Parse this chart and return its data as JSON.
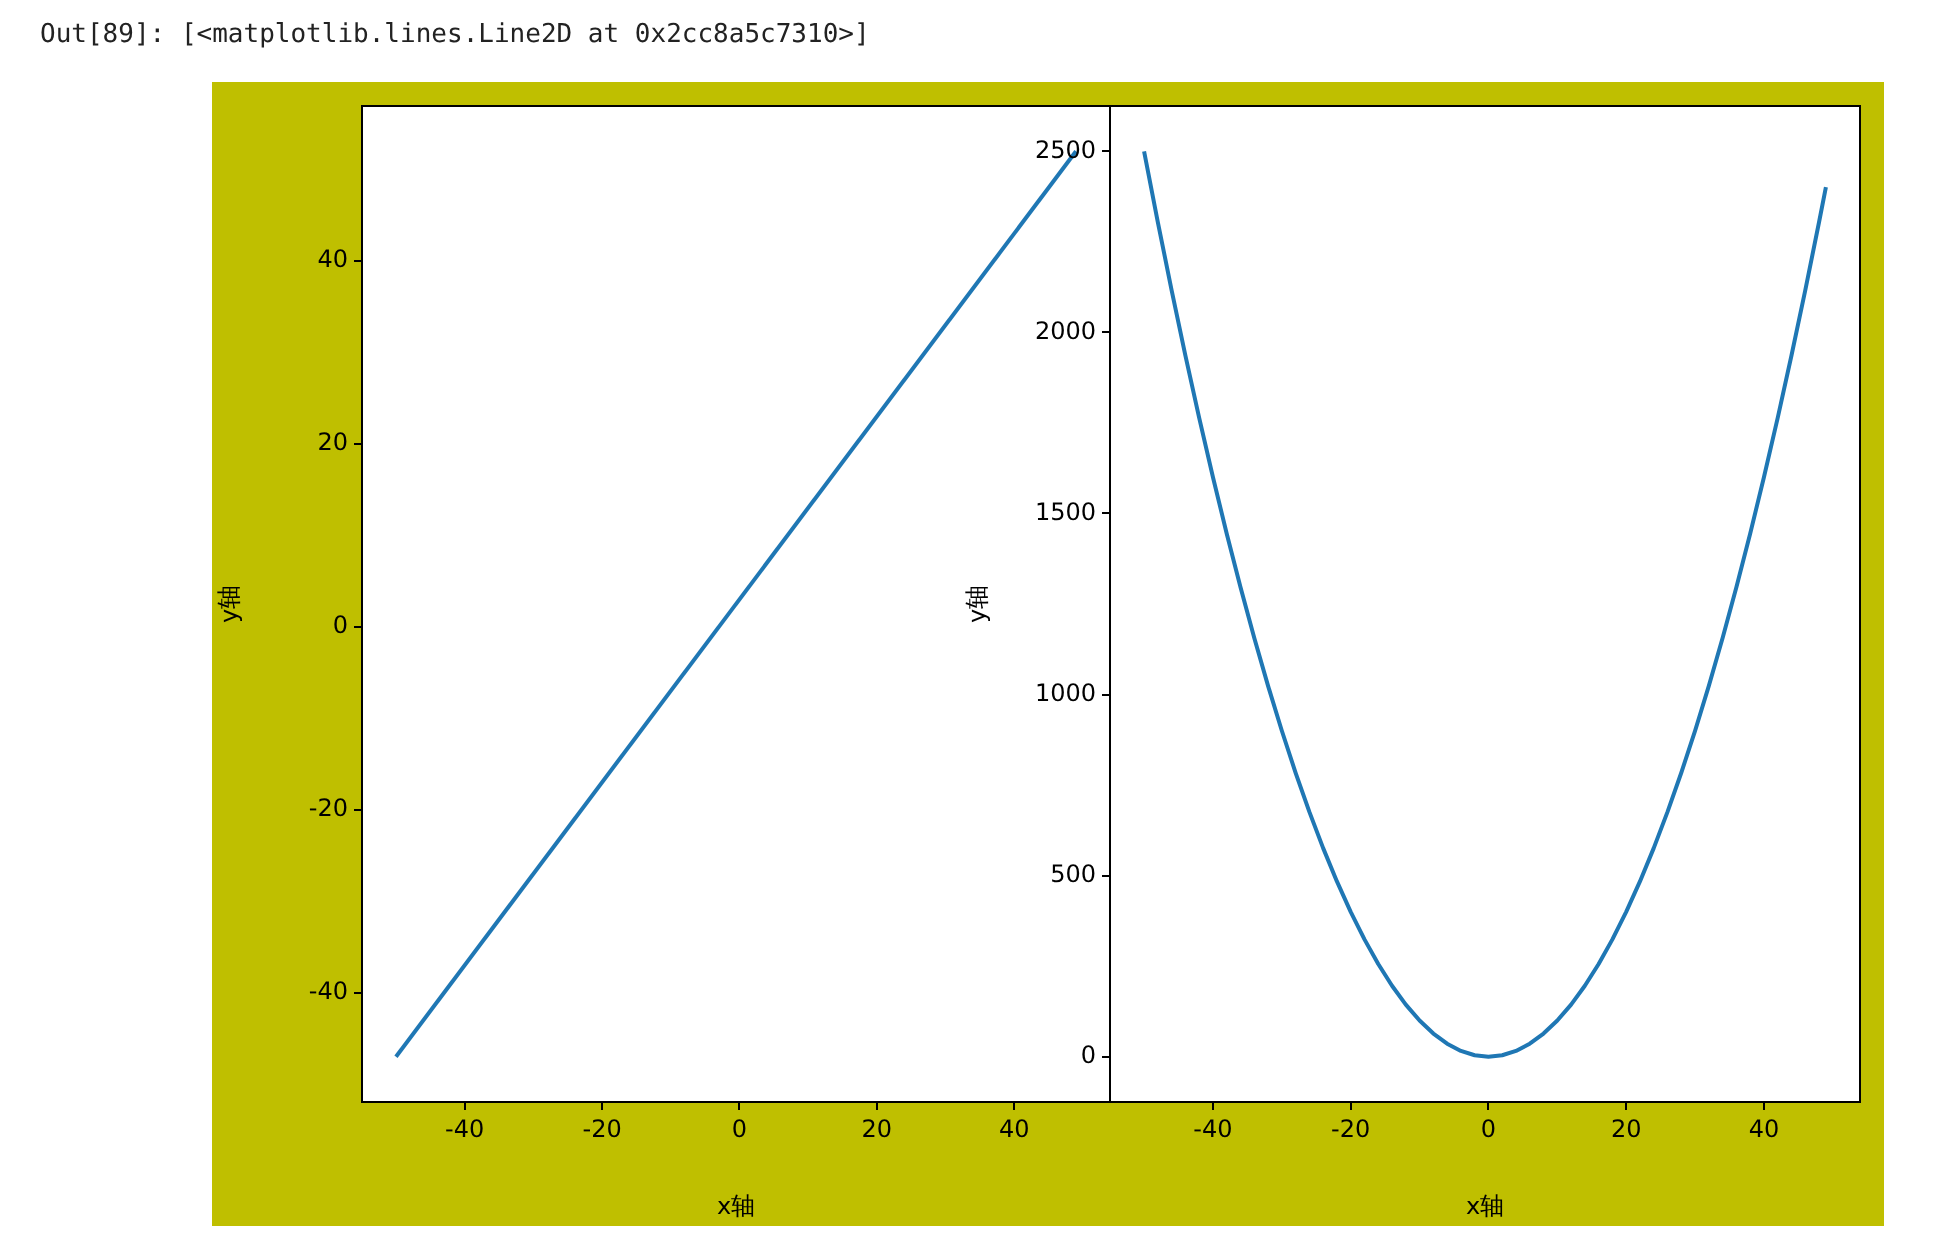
{
  "chart_data": [
    {
      "type": "line",
      "xlabel": "x轴",
      "ylabel": "y轴",
      "x": [
        -50,
        49
      ],
      "series": [
        {
          "color": "#1f77b4",
          "values": [
            -47,
            52
          ]
        }
      ],
      "xlim": [
        -54.95,
        53.95
      ],
      "ylim": [
        -51.95,
        56.95
      ],
      "xticks": [
        -40,
        -20,
        0,
        20,
        40
      ],
      "yticks": [
        -40,
        -20,
        0,
        20,
        40
      ],
      "grid": false,
      "legend": false,
      "annotations": [
        "Out[89]: [<matplotlib.lines.Line2D at 0x2cc8a5c7310>]"
      ]
    },
    {
      "type": "line",
      "xlabel": "x轴",
      "ylabel": "y轴",
      "x": [
        -50,
        -48,
        -46,
        -44,
        -42,
        -40,
        -38,
        -36,
        -34,
        -32,
        -30,
        -28,
        -26,
        -24,
        -22,
        -20,
        -18,
        -16,
        -14,
        -12,
        -10,
        -8,
        -6,
        -4,
        -2,
        0,
        2,
        4,
        6,
        8,
        10,
        12,
        14,
        16,
        18,
        20,
        22,
        24,
        26,
        28,
        30,
        32,
        34,
        36,
        38,
        40,
        42,
        44,
        46,
        48,
        49
      ],
      "series": [
        {
          "color": "#1f77b4",
          "values": [
            2500,
            2304,
            2116,
            1936,
            1764,
            1600,
            1444,
            1296,
            1156,
            1024,
            900,
            784,
            676,
            576,
            484,
            400,
            324,
            256,
            196,
            144,
            100,
            64,
            36,
            16,
            4,
            0,
            4,
            16,
            36,
            64,
            100,
            144,
            196,
            256,
            324,
            400,
            484,
            576,
            676,
            784,
            900,
            1024,
            1156,
            1296,
            1444,
            1600,
            1764,
            1936,
            2116,
            2304,
            2401
          ]
        }
      ],
      "xlim": [
        -54.95,
        53.95
      ],
      "ylim": [
        -125,
        2625
      ],
      "xticks": [
        -40,
        -20,
        0,
        20,
        40
      ],
      "yticks": [
        0,
        500,
        1000,
        1500,
        2000,
        2500
      ],
      "grid": false,
      "legend": false
    }
  ]
}
